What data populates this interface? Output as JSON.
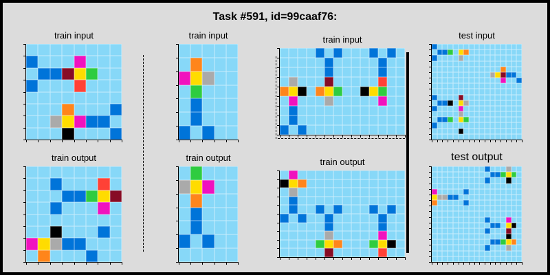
{
  "title": "Task #591, id=99caaf76:",
  "labels": {
    "train_input": "train input",
    "train_output": "train output",
    "test_input": "test input",
    "test_output": "test output"
  },
  "palette": {
    "L": "#87d8f8",
    "B": "#0074d9",
    "R": "#ff4136",
    "G": "#2ecc40",
    "Y": "#ffdc00",
    "A": "#aaaaaa",
    "M": "#f012be",
    "O": "#ff851b",
    "K": "#000000",
    "N": "#870c25",
    "W": "#ffffff"
  },
  "panels": [
    {
      "name": "train-1-input",
      "rows": [
        "LLLLLLLL",
        "BLLLMLLL",
        "LBBNYGLL",
        "BLLLRLLL",
        "LLLLLLLL",
        "LLLOLLLB",
        "LLAYMBBL",
        "LLLKLLLB"
      ]
    },
    {
      "name": "train-1-output",
      "rows": [
        "LLLLLLLL",
        "LLBLLLRL",
        "LLLBBGYN",
        "LLBLLLML",
        "LLLLLLLL",
        "LLKLLLBL",
        "MYABBLLL",
        "LOLLLBLL"
      ]
    },
    {
      "name": "train-2-input",
      "rows": [
        "LLLLL",
        "LOLLL",
        "MYALL",
        "LGLLL",
        "LBLLL",
        "LBLLL",
        "BLBLL"
      ]
    },
    {
      "name": "train-2-output",
      "rows": [
        "LGLLL",
        "AYMLL",
        "LOLLL",
        "LBLLL",
        "LBLLL",
        "BLBLL",
        "LLLLL"
      ]
    },
    {
      "name": "train-3-input",
      "rows": [
        "LLLLBLBLLLBLBL",
        "LLLLLBLLLLLBLL",
        "LLLLLBLLLLLBLL",
        "LALLLNLLLLLRLL",
        "OYKLOYGLLKYGLL",
        "LMLLLALLLLLMLL",
        "LBLLLLLLLLLLLL",
        "LBLLLLLLLLLLLL",
        "BLBLLLLLLLLLLL"
      ]
    },
    {
      "name": "train-3-output",
      "rows": [
        "LMLLLLLLLLLLLL",
        "KYOLLLLLLLLLLL",
        "LALLLLLLLLLLLL",
        "LBLLLLLLLLLLLL",
        "LBLLBLBLLLBLBL",
        "BLBLLBLLLLLBLL",
        "LLLLLBLLLLLBLL",
        "LLLLLALLLLLMLL",
        "LLLLGYOLLLGYKL",
        "LLLLLNLLLLLRLL"
      ]
    },
    {
      "name": "test-input",
      "rows": [
        "BLLLLLLLLLLLLLLLL",
        "LBBGLYOLLLLLLLLLL",
        "BLLLLALLLLLLLLLLL",
        "LLLLLLLLLLLLLLLLL",
        "LLLLLLLLLLLLLOLLL",
        "LLLLLLLLLLLAYNBBL",
        "LLLLLLLLLLLLLMLLB",
        "LLLLLLLLLLLLLLLLL",
        "LLLLLLLLLLLLLLLLL",
        "BLLLLNLLLLLLLLLLL",
        "LBBKLYALLLLLLLLLL",
        "BLLLLMLLLLLLLLLLL",
        "LLLLLALLLLLLLLLLL",
        "LBBGLYGLLLLLLLLLL",
        "BLLLLLLLLLLLLLLLL",
        "LLLLLKLLLLLLLLLLL",
        "LLLLLLLLLLLLLLLLL"
      ]
    },
    {
      "name": "test-output",
      "rows": [
        "LLLLLLLLLLBLLLALL",
        "LLLLLLLLLLLBBGYGL",
        "LLLLLLLLLLBLLLKLL",
        "LLLLLLLLLLLLLLLLL",
        "MLLLLLBLLLLLLLLLL",
        "YAABBLLLLLLLLLLLL",
        "OLLLLLBLLLLLLLLLL",
        "LLLLLLLLLLLLLLLLL",
        "LLLLLLLLLLLLLLLLL",
        "LLLLLLLLLLBLLLMLL",
        "LLLLLLLLLLLBBLYKL",
        "LLLLLLLLLLBLLLNLL",
        "LLLLLLLLLLLLLLKLL",
        "LLLLLLLLLLLBBGYOL",
        "LLLLLLLLLLBLLLALL",
        "LLLLLLLLLLLLLLLLL",
        "LLLLLLLLLLLLLLLLL"
      ]
    }
  ]
}
